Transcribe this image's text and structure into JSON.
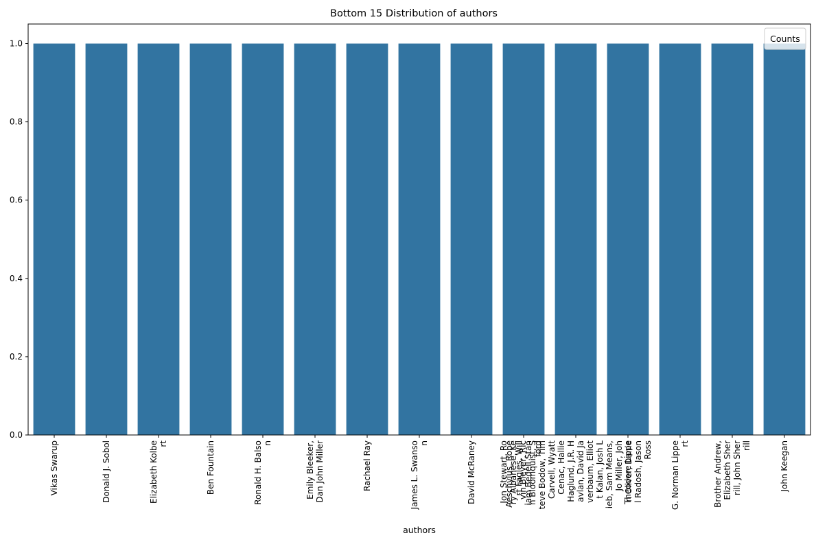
{
  "chart_data": {
    "type": "bar",
    "title": "Bottom 15 Distribution of authors",
    "xlabel": "authors",
    "ylabel": "",
    "ylim": [
      0,
      1.05
    ],
    "yticks": [
      "0.0",
      "0.2",
      "0.4",
      "0.6",
      "0.8",
      "1.0"
    ],
    "bar_color": "#3274a1",
    "legend": {
      "title": "Counts",
      "placement": "top-right"
    },
    "grid": false,
    "categories": [
      [
        "Vikas Swarup"
      ],
      [
        "Donald J. Sobol"
      ],
      [
        "Elizabeth Kolbe",
        "rt"
      ],
      [
        "Ben Fountain"
      ],
      [
        "Ronald H. Balso",
        "n"
      ],
      [
        "Emily Bleeker,",
        "Dan John Miller"
      ],
      [
        "Rachael Ray"
      ],
      [
        "James L. Swanso",
        "n"
      ],
      [
        "David McRaney"
      ],
      [
        "Aeschylus, Robe",
        "rt Fagles, Will",
        "iam Bedell Stan",
        "ford"
      ],
      [
        "Jon Stewart, Ro",
        "ry Albanese, Ke",
        "vin Bleyer, Ric",
        "h Bloomquist, S",
        "teve Bodow, Tim",
        "Carvell, Wyatt",
        "Cenac, Hallie",
        "Haglund, J.R. H",
        "avlan, David Ja",
        "verbaum, Elliot",
        "t Kalan, Josh L",
        "ieb, Sam Means,",
        "Jo Miller, Joh",
        "n Oliver, Danie",
        "l Radosh, Jason",
        "Ross"
      ],
      [
        "Theodore Lippe"
      ],
      [
        "G. Norman Lippe",
        "rt"
      ],
      [
        "Brother Andrew,",
        "Elizabeth Sher",
        "rill, John Sher",
        "rill"
      ],
      [
        "John Keegan"
      ]
    ],
    "values": [
      1,
      1,
      1,
      1,
      1,
      1,
      1,
      1,
      1,
      1,
      1,
      1,
      1,
      1,
      1
    ]
  }
}
